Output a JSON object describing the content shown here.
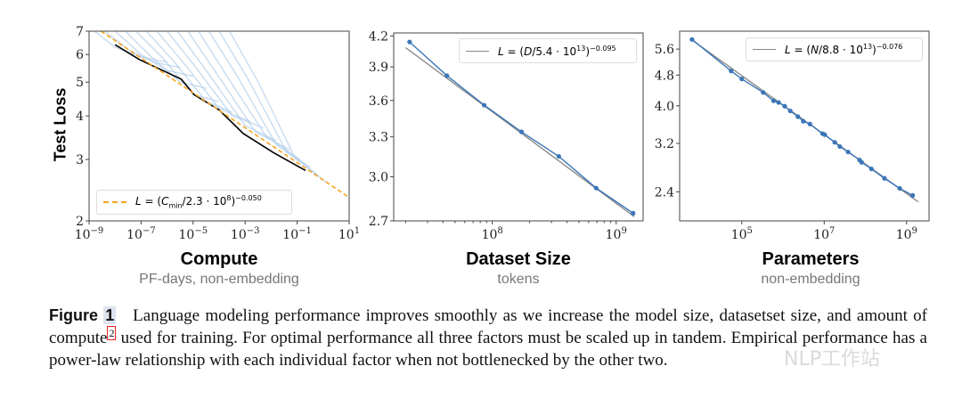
{
  "panels": [
    {
      "id": "compute",
      "title": "Compute",
      "subtitle": "PF-days, non-embedding",
      "ylabel": "Test Loss",
      "legend": {
        "lhs": "L",
        "eq": " = (",
        "var": "C",
        "sub": "min",
        "mid": "/2.3 · 10",
        "exp1": "8",
        "close": ")",
        "exp2": "−0.050"
      }
    },
    {
      "id": "dataset",
      "title": "Dataset Size",
      "subtitle": "tokens",
      "legend": {
        "lhs": "L",
        "eq": " = (",
        "var": "D",
        "mid": "/5.4 · 10",
        "exp1": "13",
        "close": ")",
        "exp2": "−0.095"
      }
    },
    {
      "id": "parameters",
      "title": "Parameters",
      "subtitle": "non-embedding",
      "legend": {
        "lhs": "L",
        "eq": " = (",
        "var": "N",
        "mid": "/8.8 · 10",
        "exp1": "13",
        "close": ")",
        "exp2": "−0.076"
      }
    }
  ],
  "caption": {
    "label": "Figure",
    "number": "1",
    "text1": "Language modeling performance improves smoothly as we increase the model size, datasetset size, and amount of compute",
    "footnote": "2",
    "text2": " used for training. For optimal performance all three factors must be scaled up in tandem. Empirical performance has a power-law relationship with each individual factor when not bottlenecked by the other two."
  },
  "watermark": "NLP工作站",
  "colors": {
    "curves": "#a9c8e6",
    "frontier": "#000000",
    "fit_compute": "#f5a623",
    "points": "#3a76b8",
    "fit": "#8a8a8a"
  },
  "chart_data": [
    {
      "type": "line",
      "id": "compute",
      "xscale": "log",
      "yscale": "log",
      "xlim": [
        1e-09,
        10
      ],
      "ylim": [
        2,
        7
      ],
      "xticks": [
        {
          "v": 1e-09,
          "base": "10",
          "exp": "−9"
        },
        {
          "v": 1e-07,
          "base": "10",
          "exp": "−7"
        },
        {
          "v": 1e-05,
          "base": "10",
          "exp": "−5"
        },
        {
          "v": 0.001,
          "base": "10",
          "exp": "−3"
        },
        {
          "v": 0.1,
          "base": "10",
          "exp": "−1"
        },
        {
          "v": 10,
          "base": "10",
          "exp": "1"
        }
      ],
      "yticks": [
        {
          "v": 2,
          "label": "2"
        },
        {
          "v": 3,
          "label": "3"
        },
        {
          "v": 4,
          "label": "4"
        },
        {
          "v": 5,
          "label": "5"
        },
        {
          "v": 6,
          "label": "6"
        },
        {
          "v": 7,
          "label": "7"
        }
      ],
      "fit": {
        "form": "power",
        "scale": 230000000.0,
        "exponent": -0.05,
        "style": "dashed",
        "range": [
          1e-09,
          10
        ]
      },
      "frontier": [
        [
          1e-08,
          6.4
        ],
        [
          8.7e-08,
          5.8
        ],
        [
          3.5e-06,
          5.1
        ],
        [
          1.1e-05,
          4.6
        ],
        [
          0.0001,
          4.16
        ],
        [
          0.00085,
          3.56
        ],
        [
          0.013,
          3.13
        ],
        [
          0.21,
          2.79
        ]
      ],
      "curves": [
        [
          [
            1.6e-09,
            7
          ],
          [
            1e-08,
            6.3
          ],
          [
            1e-07,
            5.9
          ],
          [
            1e-06,
            5.7
          ]
        ],
        [
          [
            4e-09,
            7
          ],
          [
            3.2e-08,
            6.2
          ],
          [
            3.2e-07,
            5.7
          ],
          [
            3.2e-06,
            5.5
          ]
        ],
        [
          [
            1e-08,
            7
          ],
          [
            1e-07,
            6.0
          ],
          [
            1e-06,
            5.4
          ],
          [
            1e-05,
            5.2
          ]
        ],
        [
          [
            2.5e-08,
            7
          ],
          [
            2.5e-07,
            5.9
          ],
          [
            3.2e-06,
            5.0
          ],
          [
            3.2e-05,
            4.8
          ]
        ],
        [
          [
            6.3e-08,
            7
          ],
          [
            6.3e-07,
            5.9
          ],
          [
            1e-05,
            4.6
          ],
          [
            0.0001,
            4.4
          ]
        ],
        [
          [
            1.6e-07,
            7
          ],
          [
            1.6e-06,
            5.8
          ],
          [
            3.2e-05,
            4.4
          ],
          [
            0.00032,
            4.1
          ]
        ],
        [
          [
            4e-07,
            7
          ],
          [
            5e-06,
            5.6
          ],
          [
            0.0001,
            4.2
          ],
          [
            0.0016,
            3.85
          ]
        ],
        [
          [
            1e-06,
            7
          ],
          [
            1.3e-05,
            5.5
          ],
          [
            0.00032,
            4.0
          ],
          [
            0.005,
            3.7
          ]
        ],
        [
          [
            2.5e-06,
            7
          ],
          [
            3.2e-05,
            5.4
          ],
          [
            0.001,
            3.75
          ],
          [
            0.016,
            3.4
          ]
        ],
        [
          [
            6.3e-06,
            7
          ],
          [
            8e-05,
            5.3
          ],
          [
            0.0025,
            3.6
          ],
          [
            0.05,
            3.2
          ]
        ],
        [
          [
            1.6e-05,
            7
          ],
          [
            0.0002,
            5.2
          ],
          [
            0.0063,
            3.5
          ],
          [
            0.13,
            3.0
          ]
        ],
        [
          [
            4e-05,
            7
          ],
          [
            0.0005,
            5.2
          ],
          [
            0.016,
            3.3
          ],
          [
            0.32,
            2.85
          ]
        ],
        [
          [
            0.0001,
            7
          ],
          [
            0.0013,
            5.1
          ],
          [
            0.04,
            3.15
          ],
          [
            0.63,
            2.7
          ]
        ],
        [
          [
            0.00025,
            7
          ],
          [
            0.0032,
            5.0
          ],
          [
            0.08,
            3.05
          ],
          [
            1.6,
            2.55
          ]
        ]
      ],
      "legend_placement": "lower-left"
    },
    {
      "type": "line",
      "id": "dataset",
      "xscale": "log",
      "yscale": "log",
      "xlim": [
        16000000.0,
        1650000000.0
      ],
      "ylim": [
        2.7,
        4.23
      ],
      "xticks": [
        {
          "v": 100000000.0,
          "base": "10",
          "exp": "8"
        },
        {
          "v": 1000000000.0,
          "base": "10",
          "exp": "9"
        }
      ],
      "yticks": [
        {
          "v": 2.7,
          "label": "2.7"
        },
        {
          "v": 3.0,
          "label": "3.0"
        },
        {
          "v": 3.3,
          "label": "3.3"
        },
        {
          "v": 3.6,
          "label": "3.6"
        },
        {
          "v": 3.9,
          "label": "3.9"
        },
        {
          "v": 4.2,
          "label": "4.2"
        }
      ],
      "minor_xticks": true,
      "fit": {
        "form": "power",
        "scale": 54000000000000.0,
        "exponent": -0.095,
        "style": "solid",
        "range": [
          20000000.0,
          1400000000.0
        ]
      },
      "points": [
        [
          21500000.0,
          4.14
        ],
        [
          43000000.0,
          3.82
        ],
        [
          86000000.0,
          3.56
        ],
        [
          172000000.0,
          3.34
        ],
        [
          344000000.0,
          3.15
        ],
        [
          690000000.0,
          2.92
        ],
        [
          1370000000.0,
          2.75
        ]
      ],
      "legend_placement": "upper-right"
    },
    {
      "type": "line",
      "id": "parameters",
      "xscale": "log",
      "yscale": "log",
      "xlim": [
        3100.0,
        3500000000.0
      ],
      "ylim": [
        2.02,
        6.23
      ],
      "xticks": [
        {
          "v": 100000.0,
          "base": "10",
          "exp": "5"
        },
        {
          "v": 10000000.0,
          "base": "10",
          "exp": "7"
        },
        {
          "v": 1000000000.0,
          "base": "10",
          "exp": "9"
        }
      ],
      "yticks": [
        {
          "v": 2.4,
          "label": "2.4"
        },
        {
          "v": 3.2,
          "label": "3.2"
        },
        {
          "v": 4.0,
          "label": "4.0"
        },
        {
          "v": 4.8,
          "label": "4.8"
        },
        {
          "v": 5.6,
          "label": "5.6"
        }
      ],
      "fit": {
        "form": "power",
        "scale": 88000000000000.0,
        "exponent": -0.076,
        "style": "solid",
        "range": [
          6200.0,
          1900000000.0
        ]
      },
      "points": [
        [
          6200.0,
          5.93
        ],
        [
          55000.0,
          4.92
        ],
        [
          100000.0,
          4.69
        ],
        [
          330000.0,
          4.33
        ],
        [
          590000.0,
          4.12
        ],
        [
          780000.0,
          4.08
        ],
        [
          1100000.0,
          3.99
        ],
        [
          1500000.0,
          3.88
        ],
        [
          2300000.0,
          3.75
        ],
        [
          3100000.0,
          3.65
        ],
        [
          4500000.0,
          3.59
        ],
        [
          9100000.0,
          3.39
        ],
        [
          10300000.0,
          3.37
        ],
        [
          18000000.0,
          3.22
        ],
        [
          24000000.0,
          3.14
        ],
        [
          38000000.0,
          3.04
        ],
        [
          72000000.0,
          2.9
        ],
        [
          81000000.0,
          2.86
        ],
        [
          140000000.0,
          2.75
        ],
        [
          290000000.0,
          2.6
        ],
        [
          680000000.0,
          2.45
        ],
        [
          1400000000.0,
          2.35
        ]
      ],
      "legend_placement": "upper-right"
    }
  ]
}
